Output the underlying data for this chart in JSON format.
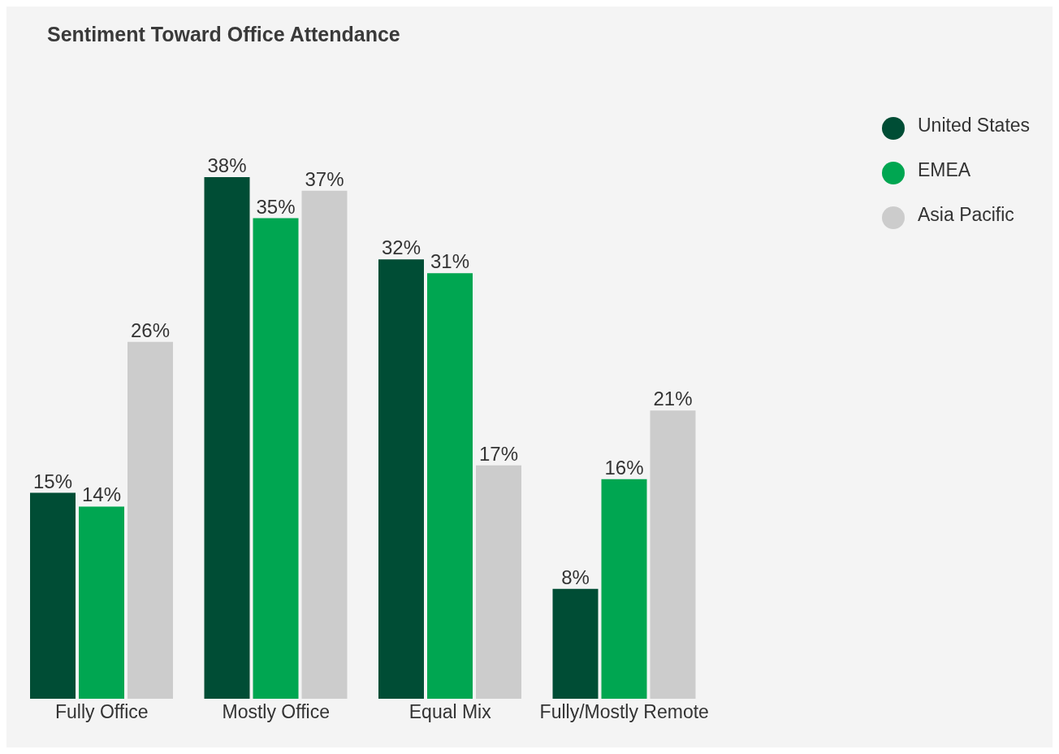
{
  "chart_data": {
    "type": "bar",
    "title": "Sentiment Toward Office Attendance",
    "categories": [
      "Fully Office",
      "Mostly Office",
      "Equal Mix",
      "Fully/Mostly Remote"
    ],
    "series": [
      {
        "name": "United States",
        "color": "#004d35",
        "values": [
          15,
          38,
          32,
          8
        ],
        "value_labels": [
          "15%",
          "38%",
          "32%",
          "8%"
        ]
      },
      {
        "name": "EMEA",
        "color": "#00a651",
        "values": [
          14,
          35,
          31,
          16
        ],
        "value_labels": [
          "14%",
          "35%",
          "31%",
          "16%"
        ]
      },
      {
        "name": "Asia Pacific",
        "color": "#cccccc",
        "values": [
          26,
          37,
          17,
          21
        ],
        "value_labels": [
          "26%",
          "37%",
          "17%",
          "21%"
        ]
      }
    ],
    "legend": "top right",
    "grid": false
  }
}
